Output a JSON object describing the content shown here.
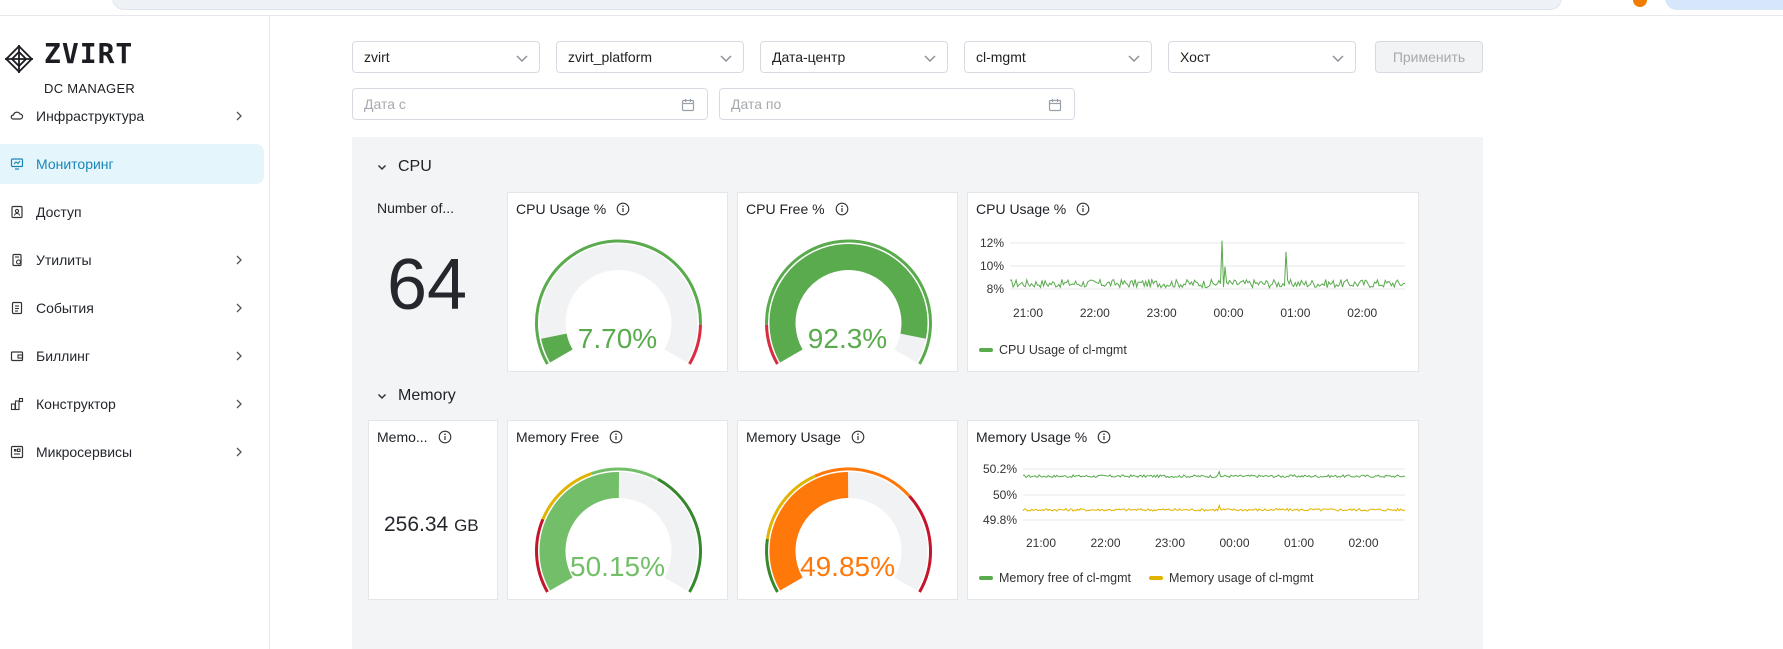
{
  "brand": {
    "name": "ZVIRT",
    "subtitle": "DC MANAGER"
  },
  "sidebar": {
    "items": [
      {
        "label": "Инфраструктура",
        "icon": "cloud-icon",
        "has_children": true,
        "active": false
      },
      {
        "label": "Мониторинг",
        "icon": "monitor-icon",
        "has_children": false,
        "active": true
      },
      {
        "label": "Доступ",
        "icon": "access-icon",
        "has_children": false,
        "active": false
      },
      {
        "label": "Утилиты",
        "icon": "tools-icon",
        "has_children": true,
        "active": false
      },
      {
        "label": "События",
        "icon": "events-icon",
        "has_children": true,
        "active": false
      },
      {
        "label": "Биллинг",
        "icon": "wallet-icon",
        "has_children": true,
        "active": false
      },
      {
        "label": "Конструктор",
        "icon": "constructor-icon",
        "has_children": true,
        "active": false
      },
      {
        "label": "Микросервисы",
        "icon": "microservices-icon",
        "has_children": true,
        "active": false
      }
    ]
  },
  "filters": {
    "selects": [
      {
        "value": "zvirt"
      },
      {
        "value": "zvirt_platform"
      },
      {
        "value": "Дата-центр"
      },
      {
        "value": "cl-mgmt"
      },
      {
        "value": "Хост"
      }
    ],
    "apply_label": "Применить",
    "date_from_placeholder": "Дата с",
    "date_to_placeholder": "Дата по"
  },
  "cpu": {
    "section_title": "CPU",
    "count": {
      "title": "Number of...",
      "value": "64"
    },
    "usage_gauge": {
      "title": "CPU Usage %",
      "value_text": "7.70%",
      "value": 7.7,
      "color": "#5aaa4e"
    },
    "free_gauge": {
      "title": "CPU Free %",
      "value_text": "92.3%",
      "value": 92.3,
      "color": "#5aaa4e"
    },
    "chart_title": "CPU Usage %"
  },
  "memory": {
    "section_title": "Memory",
    "total": {
      "title": "Memo...",
      "value": "256.34",
      "unit": "GB"
    },
    "free_gauge": {
      "title": "Memory Free",
      "value_text": "50.15%",
      "value": 50.15,
      "color": "#73bf69"
    },
    "usage_gauge": {
      "title": "Memory Usage",
      "value_text": "49.85%",
      "value": 49.85,
      "color": "#ff780a"
    },
    "chart_title": "Memory Usage %"
  },
  "chart_data": [
    {
      "type": "line",
      "title": "CPU Usage %",
      "x_ticks": [
        "21:00",
        "22:00",
        "23:00",
        "00:00",
        "01:00",
        "02:00"
      ],
      "y_ticks": [
        "12%",
        "10%",
        "8%"
      ],
      "ylim": [
        7,
        13
      ],
      "grid": true,
      "legend_position": "bottom-left",
      "series": [
        {
          "name": "CPU Usage of cl-mgmt",
          "color": "#5aaa4e",
          "baseline": 7.8,
          "noise": 0.45,
          "spikes": [
            [
              0.535,
              12.4
            ],
            [
              0.7,
              11.2
            ],
            [
              0.545,
              9.6
            ]
          ]
        }
      ]
    },
    {
      "type": "line",
      "title": "Memory Usage %",
      "x_ticks": [
        "21:00",
        "22:00",
        "23:00",
        "00:00",
        "01:00",
        "02:00"
      ],
      "y_ticks": [
        "50.2%",
        "50%",
        "49.8%"
      ],
      "ylim": [
        49.75,
        50.25
      ],
      "grid": true,
      "legend_position": "bottom-left",
      "series": [
        {
          "name": "Memory free of cl-mgmt",
          "color": "#5aaa4e",
          "baseline": 50.15,
          "noise": 0.012,
          "spikes": [
            [
              0.515,
              50.19
            ]
          ]
        },
        {
          "name": "Memory usage of cl-mgmt",
          "color": "#e0b400",
          "baseline": 49.85,
          "noise": 0.012,
          "spikes": [
            [
              0.515,
              49.89
            ]
          ]
        }
      ]
    }
  ]
}
